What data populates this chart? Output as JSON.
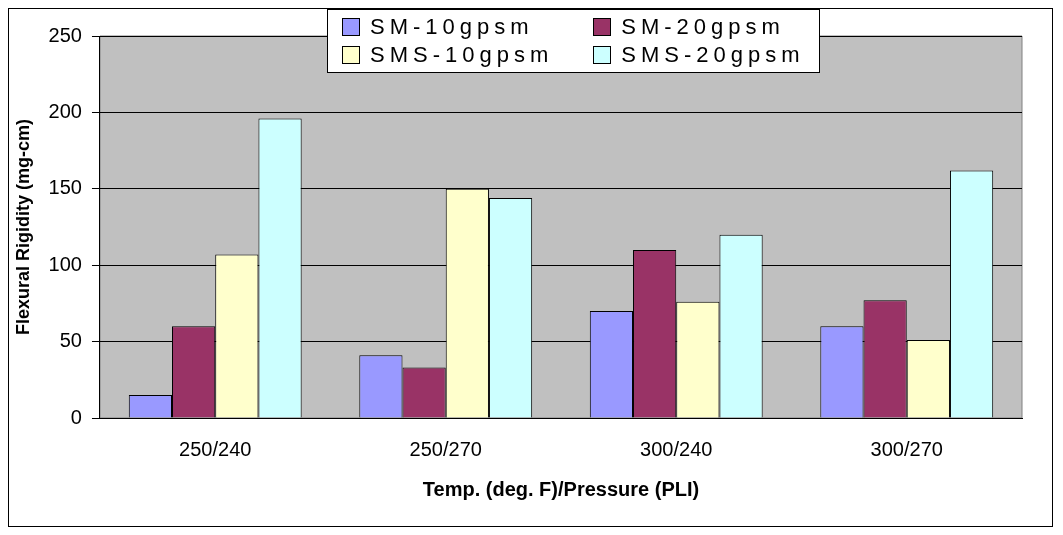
{
  "chart_data": {
    "type": "bar",
    "xlabel": "Temp. (deg. F)/Pressure (PLI)",
    "ylabel": "Flexural Rigidity (mg-cm)",
    "categories": [
      "250/240",
      "250/270",
      "300/240",
      "300/270"
    ],
    "series": [
      {
        "name": "SM-10gpsm",
        "color": "#9999ff",
        "values": [
          15,
          41,
          70,
          60
        ]
      },
      {
        "name": "SM-20gpsm",
        "color": "#993366",
        "values": [
          60,
          33,
          110,
          77
        ]
      },
      {
        "name": "SMS-10gpsm",
        "color": "#ffffcc",
        "values": [
          107,
          150,
          76,
          51
        ]
      },
      {
        "name": "SMS-20gpsm",
        "color": "#ccffff",
        "values": [
          196,
          144,
          120,
          162
        ]
      }
    ],
    "ylim": [
      0,
      250
    ],
    "yticks": [
      0,
      50,
      100,
      150,
      200,
      250
    ],
    "grid": "y",
    "legend": "top"
  }
}
